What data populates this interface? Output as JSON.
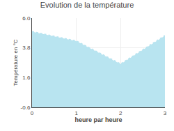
{
  "chart_data": {
    "type": "area",
    "title": "Evolution de la température",
    "xlabel": "heure par heure",
    "ylabel": "Température en °C",
    "x": [
      0,
      1,
      2,
      3
    ],
    "values": [
      5.0,
      4.3,
      2.6,
      4.7
    ],
    "color": "#b8e4f0",
    "line_style": "dotted",
    "xlim": [
      0,
      3
    ],
    "xticks": [
      0,
      1,
      2,
      3
    ],
    "ylim": [
      -0.6,
      6.0
    ],
    "yticks": [
      -0.6,
      1.6,
      3.8,
      {
        "value": 6.0,
        "label": "6.0"
      }
    ],
    "grid": true
  }
}
